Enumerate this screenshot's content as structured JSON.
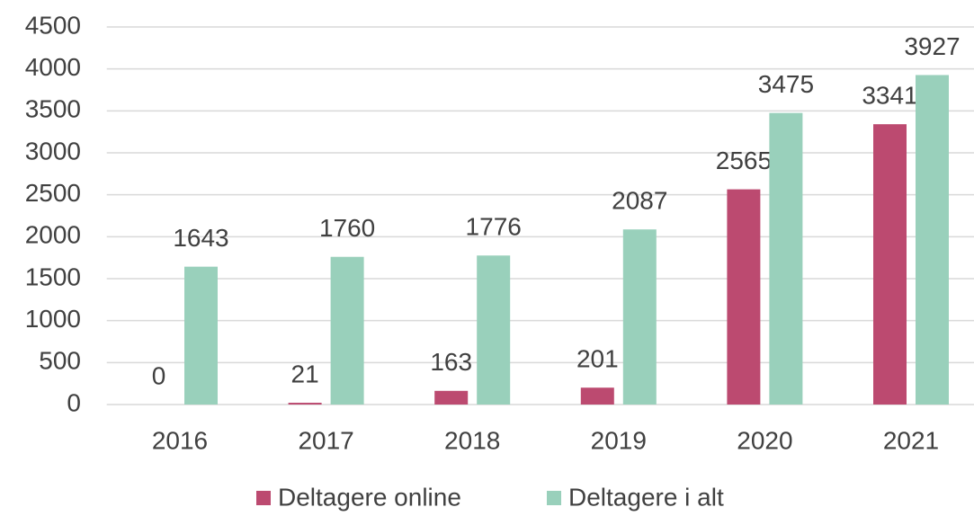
{
  "chart_data": {
    "type": "bar",
    "categories": [
      "2016",
      "2017",
      "2018",
      "2019",
      "2020",
      "2021"
    ],
    "series": [
      {
        "name": "Deltagere online",
        "color": "#bc4a70",
        "values": [
          0,
          21,
          163,
          201,
          2565,
          3341
        ]
      },
      {
        "name": "Deltagere i alt",
        "color": "#99d0bb",
        "values": [
          1643,
          1760,
          1776,
          2087,
          3475,
          3927
        ]
      }
    ],
    "ylim": [
      0,
      4500
    ],
    "yticks": [
      0,
      500,
      1000,
      1500,
      2000,
      2500,
      3000,
      3500,
      4000,
      4500
    ],
    "grid": true,
    "legend": "bottom"
  }
}
